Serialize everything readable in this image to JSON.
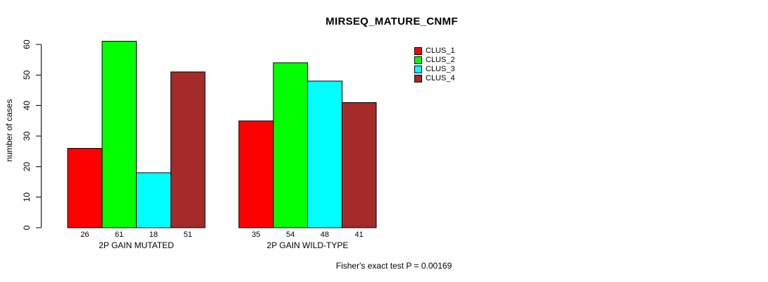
{
  "chart_data": {
    "type": "bar",
    "title": "MIRSEQ_MATURE_CNMF",
    "ylabel": "number of cases",
    "xlabel": "",
    "ylim": [
      0,
      60
    ],
    "yticks": [
      0,
      10,
      20,
      30,
      40,
      50,
      60
    ],
    "grid": false,
    "legend_position": "top-right",
    "bar_value_labels": true,
    "categories": [
      "2P GAIN MUTATED",
      "2P GAIN WILD-TYPE"
    ],
    "series": [
      {
        "name": "CLUS_1",
        "color": "#FF0000",
        "values": [
          26,
          35
        ]
      },
      {
        "name": "CLUS_2",
        "color": "#00FF00",
        "values": [
          61,
          54
        ]
      },
      {
        "name": "CLUS_3",
        "color": "#00FFFF",
        "values": [
          18,
          48
        ]
      },
      {
        "name": "CLUS_4",
        "color": "#A52A2A",
        "values": [
          51,
          41
        ]
      }
    ],
    "annotation": "Fisher's exact test P = 0.00169"
  }
}
